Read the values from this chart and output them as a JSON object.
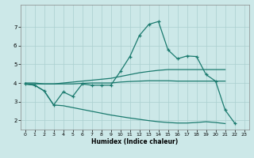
{
  "xlabel": "Humidex (Indice chaleur)",
  "xlim": [
    -0.5,
    23.5
  ],
  "ylim": [
    1.5,
    8.2
  ],
  "yticks": [
    2,
    3,
    4,
    5,
    6,
    7
  ],
  "xticks": [
    0,
    1,
    2,
    3,
    4,
    5,
    6,
    7,
    8,
    9,
    10,
    11,
    12,
    13,
    14,
    15,
    16,
    17,
    18,
    19,
    20,
    21,
    22,
    23
  ],
  "bg_color": "#cce8e8",
  "line_color": "#1a7a6e",
  "grid_color": "#aacfcf",
  "series": {
    "curve1_x": [
      0,
      1,
      2,
      3,
      4,
      5,
      6,
      7,
      8,
      9,
      10,
      11,
      12,
      13,
      14,
      15,
      16,
      17,
      18,
      19,
      20,
      21,
      22
    ],
    "curve1_y": [
      3.95,
      3.88,
      3.58,
      2.82,
      3.52,
      3.28,
      3.95,
      3.88,
      3.88,
      3.88,
      4.62,
      5.42,
      6.55,
      7.15,
      7.3,
      5.78,
      5.3,
      5.45,
      5.42,
      4.45,
      4.1,
      2.55,
      1.85
    ],
    "curve2_x": [
      0,
      1,
      2,
      3,
      4,
      5,
      6,
      7,
      8,
      9,
      10,
      11,
      12,
      13,
      14,
      15,
      16,
      17,
      18,
      19,
      20,
      21
    ],
    "curve2_y": [
      3.95,
      3.95,
      3.95,
      3.95,
      4.0,
      4.05,
      4.1,
      4.15,
      4.2,
      4.25,
      4.35,
      4.45,
      4.55,
      4.62,
      4.68,
      4.72,
      4.72,
      4.72,
      4.72,
      4.72,
      4.72,
      4.72
    ],
    "curve3_x": [
      0,
      1,
      2,
      3,
      4,
      5,
      6,
      7,
      8,
      9,
      10,
      11,
      12,
      13,
      14,
      15,
      16,
      17,
      18,
      19,
      20,
      21
    ],
    "curve3_y": [
      4.0,
      4.0,
      3.95,
      3.95,
      3.95,
      3.95,
      3.98,
      4.0,
      4.0,
      4.0,
      4.05,
      4.08,
      4.1,
      4.12,
      4.12,
      4.12,
      4.1,
      4.1,
      4.1,
      4.1,
      4.1,
      4.1
    ],
    "curve4_x": [
      0,
      1,
      2,
      3,
      4,
      5,
      6,
      7,
      8,
      9,
      10,
      11,
      12,
      13,
      14,
      15,
      16,
      17,
      18,
      19,
      20,
      21
    ],
    "curve4_y": [
      3.95,
      3.88,
      3.58,
      2.82,
      2.78,
      2.68,
      2.58,
      2.48,
      2.38,
      2.28,
      2.2,
      2.12,
      2.05,
      1.98,
      1.92,
      1.88,
      1.85,
      1.85,
      1.88,
      1.92,
      1.88,
      1.82
    ]
  }
}
